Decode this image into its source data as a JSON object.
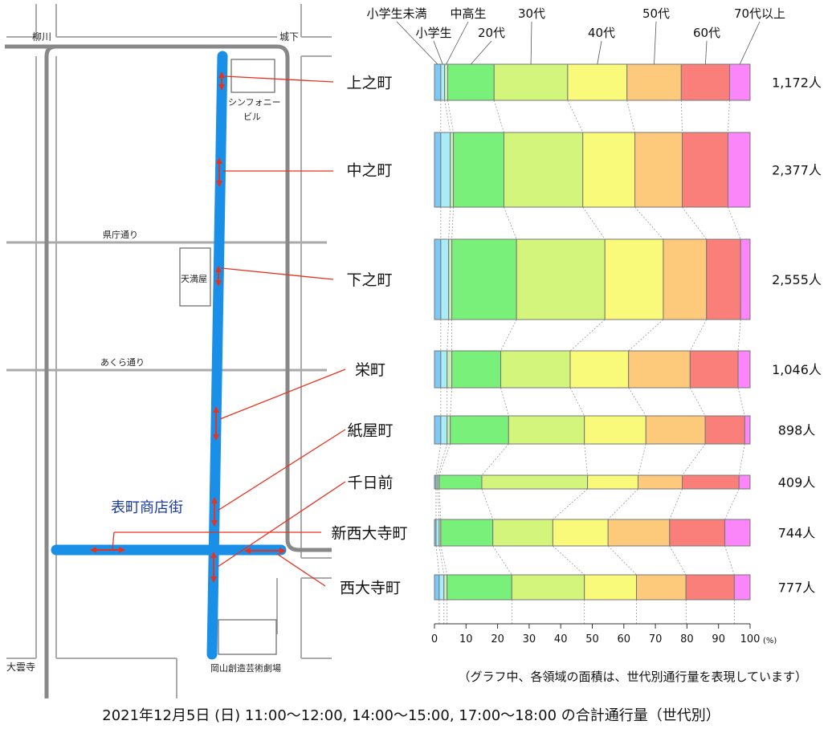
{
  "footer": {
    "title": "2021年12月5日 (日)  11:00〜12:00, 14:00〜15:00, 17:00〜18:00 の合計通行量（世代別）",
    "note": "（グラフ中、各領域の面積は、世代別通行量を表現しています）"
  },
  "map": {
    "district_label": "表町商店街",
    "place_labels": {
      "yanagawa": "柳川",
      "shiroshita": "城下",
      "symphony_line1": "シンフォニー",
      "symphony_line2": "ビル",
      "kencho_dori": "県庁通り",
      "tenmanya": "天満屋",
      "akura_dori": "あくら通り",
      "oomoji": "大雲寺",
      "theater": "岡山創造芸術劇場"
    },
    "colors": {
      "road": "#aaaaaa",
      "main_road": "#888888",
      "shopping_street": "#1a8fe8",
      "arrow": "#e8321e",
      "building": "#666666"
    }
  },
  "chart_data": {
    "type": "bar",
    "orientation": "horizontal",
    "stacked": "percent",
    "xlim": [
      0,
      100
    ],
    "xticks": [
      0,
      10,
      20,
      30,
      40,
      50,
      60,
      70,
      80,
      90,
      100
    ],
    "xunit": "(%)",
    "age_groups": [
      "小学生未満",
      "小学生",
      "中高生",
      "20代",
      "30代",
      "40代",
      "50代",
      "60代",
      "70代以上"
    ],
    "colors": [
      "#7ec8f5",
      "#a8ecf7",
      "#c9f0b8",
      "#78f07a",
      "#d4f57c",
      "#fafa7a",
      "#fcca7a",
      "#fa7e7a",
      "#fa86fa"
    ],
    "categories": [
      "上之町",
      "中之町",
      "下之町",
      "栄町",
      "紙屋町",
      "千日前",
      "新西大寺町",
      "西大寺町"
    ],
    "totals": [
      1172,
      2377,
      2555,
      1046,
      898,
      409,
      744,
      777
    ],
    "total_labels": [
      "1,172人",
      "2,377人",
      "2,555人",
      "1,046人",
      "898人",
      "409人",
      "744人",
      "777人"
    ],
    "series": [
      {
        "name": "小学生未満",
        "values": [
          2.0,
          2.0,
          2.0,
          2.0,
          2.0,
          0.5,
          0.5,
          1.5
        ]
      },
      {
        "name": "小学生",
        "values": [
          1.2,
          3.0,
          2.5,
          2.0,
          2.0,
          0.5,
          1.0,
          1.5
        ]
      },
      {
        "name": "中高生",
        "values": [
          1.0,
          1.0,
          1.0,
          1.5,
          1.0,
          0.5,
          0.5,
          1.0
        ]
      },
      {
        "name": "20代",
        "values": [
          14.7,
          16.0,
          20.5,
          15.5,
          18.5,
          13.5,
          16.5,
          20.5
        ]
      },
      {
        "name": "30代",
        "values": [
          23.3,
          25.0,
          28.0,
          22.0,
          24.0,
          33.5,
          19.0,
          23.0
        ]
      },
      {
        "name": "40代",
        "values": [
          18.8,
          16.5,
          18.5,
          18.5,
          19.5,
          16.0,
          17.5,
          16.5
        ]
      },
      {
        "name": "50代",
        "values": [
          17.2,
          15.0,
          13.7,
          19.5,
          18.8,
          14.0,
          19.5,
          15.7
        ]
      },
      {
        "name": "60代",
        "values": [
          15.3,
          14.5,
          10.8,
          15.2,
          12.5,
          18.0,
          17.5,
          15.3
        ]
      },
      {
        "name": "70代以上",
        "values": [
          6.5,
          7.0,
          3.0,
          3.8,
          1.7,
          3.5,
          8.0,
          5.0
        ]
      }
    ]
  }
}
